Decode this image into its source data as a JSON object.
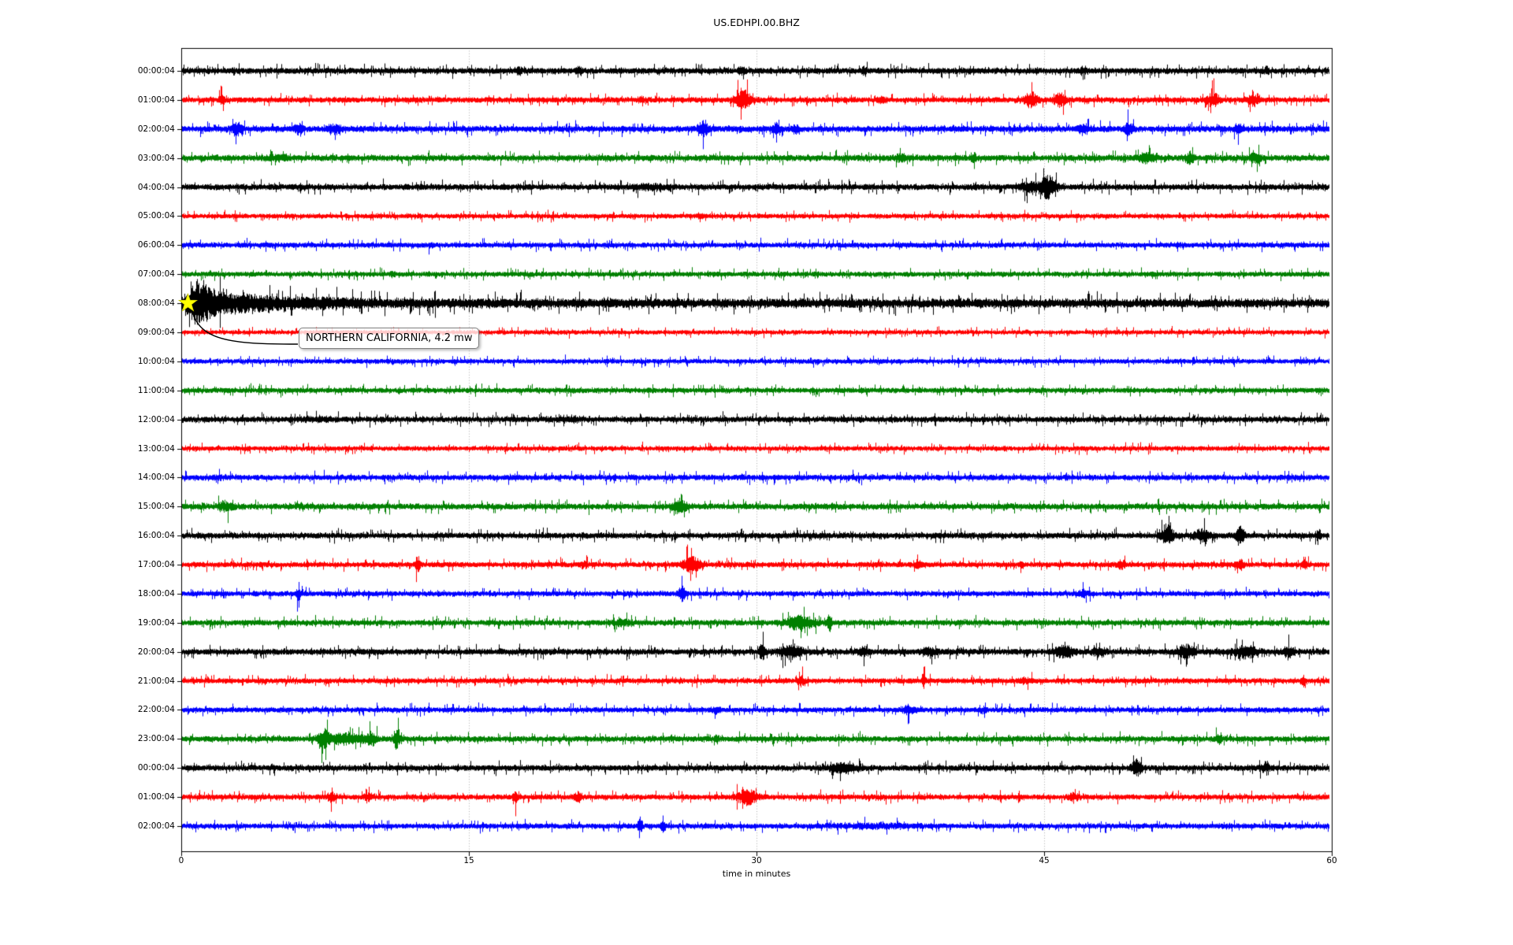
{
  "chart_data": {
    "type": "line",
    "subtype": "helicorder-day-plot",
    "title": "US.EDHPI.00.BHZ",
    "xlabel": "time in minutes",
    "x_range_minutes": [
      0,
      60
    ],
    "x_ticks": [
      0,
      15,
      30,
      45,
      60
    ],
    "grid_vertical_minutes": [
      15,
      30,
      45
    ],
    "grid_style": "dotted",
    "color_cycle": [
      "#000000",
      "#ff0000",
      "#0000ff",
      "#008000"
    ],
    "annotation": {
      "text": "NORTHERN CALIFORNIA, 4.2 mw",
      "event_row_label": "08:00:04",
      "event_row_index": 8,
      "event_minute": 0.35,
      "marker": "star-icon",
      "marker_color": "#ffff00",
      "box_fill": "#ffffff",
      "box_border": "#7f7f7f"
    },
    "rows": [
      {
        "label": "00:00:04",
        "color": "#000000",
        "base": 3.9,
        "events": [
          {
            "t": 17.6,
            "a": 1.1,
            "w": 0.12
          },
          {
            "t": 20.7,
            "a": 0.9,
            "w": 0.12
          },
          {
            "t": 29.2,
            "a": 0.7,
            "w": 0.2
          },
          {
            "t": 35.6,
            "a": 1.3,
            "w": 0.1
          },
          {
            "t": 47.0,
            "a": 0.8,
            "w": 0.15
          },
          {
            "t": 56.6,
            "a": 1.1,
            "w": 0.1
          }
        ]
      },
      {
        "label": "01:00:04",
        "color": "#ff0000",
        "base": 3.6,
        "events": [
          {
            "t": 2.1,
            "a": 1.4,
            "w": 0.15
          },
          {
            "t": 24.0,
            "a": 0.6,
            "w": 0.2
          },
          {
            "t": 29.3,
            "a": 2.7,
            "w": 0.4
          },
          {
            "t": 36.5,
            "a": 0.8,
            "w": 0.2
          },
          {
            "t": 44.3,
            "a": 2.4,
            "w": 0.35
          },
          {
            "t": 45.8,
            "a": 2.1,
            "w": 0.3
          },
          {
            "t": 53.8,
            "a": 2.1,
            "w": 0.3
          },
          {
            "t": 55.9,
            "a": 1.9,
            "w": 0.25
          }
        ]
      },
      {
        "label": "02:00:04",
        "color": "#0000ff",
        "base": 4.0,
        "events": [
          {
            "t": 2.9,
            "a": 1.7,
            "w": 0.25
          },
          {
            "t": 6.1,
            "a": 1.5,
            "w": 0.2
          },
          {
            "t": 8.0,
            "a": 1.2,
            "w": 0.3
          },
          {
            "t": 27.2,
            "a": 2.4,
            "w": 0.25
          },
          {
            "t": 31.0,
            "a": 1.5,
            "w": 0.2
          },
          {
            "t": 32.0,
            "a": 1.0,
            "w": 0.2
          },
          {
            "t": 47.1,
            "a": 1.1,
            "w": 0.3
          },
          {
            "t": 49.4,
            "a": 1.5,
            "w": 0.2
          },
          {
            "t": 55.1,
            "a": 1.3,
            "w": 0.2
          }
        ]
      },
      {
        "label": "03:00:04",
        "color": "#008000",
        "base": 4.0,
        "events": [
          {
            "t": 5.0,
            "a": 0.6,
            "w": 0.5
          },
          {
            "t": 37.5,
            "a": 0.8,
            "w": 0.3
          },
          {
            "t": 41.3,
            "a": 1.5,
            "w": 0.12
          },
          {
            "t": 50.3,
            "a": 1.2,
            "w": 0.4
          },
          {
            "t": 52.6,
            "a": 1.7,
            "w": 0.2
          },
          {
            "t": 56.0,
            "a": 1.1,
            "w": 0.3
          }
        ]
      },
      {
        "label": "04:00:04",
        "color": "#000000",
        "base": 3.9,
        "events": [
          {
            "t": 24.5,
            "a": 0.6,
            "w": 0.8
          },
          {
            "t": 44.2,
            "a": 1.4,
            "w": 0.4
          },
          {
            "t": 45.2,
            "a": 3.6,
            "w": 0.4
          }
        ]
      },
      {
        "label": "05:00:04",
        "color": "#ff0000",
        "base": 3.1,
        "events": [
          {
            "t": 27.0,
            "a": 0.6,
            "w": 0.2
          }
        ]
      },
      {
        "label": "06:00:04",
        "color": "#0000ff",
        "base": 3.4,
        "events": [
          {
            "t": 13.0,
            "a": 0.5,
            "w": 0.2
          },
          {
            "t": 52.0,
            "a": 0.5,
            "w": 0.2
          }
        ]
      },
      {
        "label": "07:00:04",
        "color": "#008000",
        "base": 3.3,
        "events": [
          {
            "t": 11.0,
            "a": 0.7,
            "w": 0.12
          }
        ]
      },
      {
        "label": "08:00:04",
        "color": "#000000",
        "base": 3.9,
        "events": [
          {
            "t": 0.85,
            "a": 5.6,
            "w": 0.5
          },
          {
            "t": 1.7,
            "a": 2.6,
            "w": 0.7
          },
          {
            "t": 3.2,
            "a": 1.4,
            "w": 1.3
          },
          {
            "t": 6.0,
            "a": 0.8,
            "w": 2.5
          }
        ],
        "tail": {
          "a": 0.5,
          "tau": 45,
          "floor": 0.32
        }
      },
      {
        "label": "09:00:04",
        "color": "#ff0000",
        "base": 2.9,
        "events": []
      },
      {
        "label": "10:00:04",
        "color": "#0000ff",
        "base": 3.1,
        "events": []
      },
      {
        "label": "11:00:04",
        "color": "#008000",
        "base": 3.4,
        "events": []
      },
      {
        "label": "12:00:04",
        "color": "#000000",
        "base": 3.7,
        "events": [
          {
            "t": 7.0,
            "a": 0.4,
            "w": 1.0
          },
          {
            "t": 20.0,
            "a": 0.3,
            "w": 0.8
          }
        ]
      },
      {
        "label": "13:00:04",
        "color": "#ff0000",
        "base": 3.1,
        "events": []
      },
      {
        "label": "14:00:04",
        "color": "#0000ff",
        "base": 3.6,
        "events": [
          {
            "t": 2.0,
            "a": 0.4,
            "w": 0.3
          }
        ]
      },
      {
        "label": "15:00:04",
        "color": "#008000",
        "base": 3.9,
        "events": [
          {
            "t": 2.3,
            "a": 1.1,
            "w": 0.4
          },
          {
            "t": 26.0,
            "a": 2.1,
            "w": 0.35
          }
        ]
      },
      {
        "label": "16:00:04",
        "color": "#000000",
        "base": 3.8,
        "events": [
          {
            "t": 51.4,
            "a": 3.1,
            "w": 0.3
          },
          {
            "t": 53.2,
            "a": 1.7,
            "w": 0.4
          },
          {
            "t": 55.2,
            "a": 3.4,
            "w": 0.2
          },
          {
            "t": 59.3,
            "a": 1.5,
            "w": 0.12
          }
        ]
      },
      {
        "label": "17:00:04",
        "color": "#ff0000",
        "base": 3.5,
        "events": [
          {
            "t": 12.3,
            "a": 2.5,
            "w": 0.12
          },
          {
            "t": 21.0,
            "a": 0.8,
            "w": 0.2
          },
          {
            "t": 26.6,
            "a": 2.7,
            "w": 0.45
          },
          {
            "t": 38.4,
            "a": 1.3,
            "w": 0.15
          },
          {
            "t": 43.8,
            "a": 1.7,
            "w": 0.1
          },
          {
            "t": 49.0,
            "a": 1.2,
            "w": 0.2
          },
          {
            "t": 55.2,
            "a": 1.5,
            "w": 0.2
          },
          {
            "t": 58.6,
            "a": 1.2,
            "w": 0.12
          }
        ]
      },
      {
        "label": "18:00:04",
        "color": "#0000ff",
        "base": 3.4,
        "events": [
          {
            "t": 6.1,
            "a": 2.1,
            "w": 0.12
          },
          {
            "t": 26.1,
            "a": 2.3,
            "w": 0.18
          },
          {
            "t": 47.0,
            "a": 1.1,
            "w": 0.25
          }
        ]
      },
      {
        "label": "19:00:04",
        "color": "#008000",
        "base": 3.7,
        "events": [
          {
            "t": 23.0,
            "a": 0.8,
            "w": 0.4
          },
          {
            "t": 32.3,
            "a": 2.1,
            "w": 0.7
          },
          {
            "t": 33.8,
            "a": 2.5,
            "w": 0.12
          }
        ]
      },
      {
        "label": "20:00:04",
        "color": "#000000",
        "base": 3.9,
        "events": [
          {
            "t": 30.3,
            "a": 2.9,
            "w": 0.18
          },
          {
            "t": 31.8,
            "a": 1.7,
            "w": 0.6
          },
          {
            "t": 35.6,
            "a": 1.1,
            "w": 0.3
          },
          {
            "t": 39.0,
            "a": 1.0,
            "w": 0.4
          },
          {
            "t": 46.0,
            "a": 1.7,
            "w": 0.5
          },
          {
            "t": 47.8,
            "a": 1.1,
            "w": 0.3
          },
          {
            "t": 52.4,
            "a": 1.8,
            "w": 0.4
          },
          {
            "t": 55.5,
            "a": 1.6,
            "w": 0.6
          },
          {
            "t": 57.7,
            "a": 1.3,
            "w": 0.3
          }
        ]
      },
      {
        "label": "21:00:04",
        "color": "#ff0000",
        "base": 3.4,
        "events": [
          {
            "t": 32.3,
            "a": 1.7,
            "w": 0.18
          },
          {
            "t": 38.7,
            "a": 2.3,
            "w": 0.1
          },
          {
            "t": 44.0,
            "a": 0.8,
            "w": 0.3
          },
          {
            "t": 58.5,
            "a": 1.5,
            "w": 0.1
          }
        ]
      },
      {
        "label": "22:00:04",
        "color": "#0000ff",
        "base": 3.4,
        "events": [
          {
            "t": 27.9,
            "a": 0.8,
            "w": 0.2
          },
          {
            "t": 37.9,
            "a": 1.2,
            "w": 0.3
          },
          {
            "t": 41.9,
            "a": 1.5,
            "w": 0.1
          }
        ]
      },
      {
        "label": "23:00:04",
        "color": "#008000",
        "base": 3.7,
        "events": [
          {
            "t": 7.4,
            "a": 2.9,
            "w": 0.3
          },
          {
            "t": 8.6,
            "a": 1.7,
            "w": 0.8
          },
          {
            "t": 9.9,
            "a": 1.9,
            "w": 0.3
          },
          {
            "t": 11.2,
            "a": 3.5,
            "w": 0.15
          },
          {
            "t": 27.9,
            "a": 1.1,
            "w": 0.12
          },
          {
            "t": 54.1,
            "a": 1.3,
            "w": 0.15
          }
        ]
      },
      {
        "label": "00:00:04",
        "color": "#000000",
        "base": 3.8,
        "events": [
          {
            "t": 34.5,
            "a": 1.1,
            "w": 0.8
          },
          {
            "t": 49.8,
            "a": 2.5,
            "w": 0.25
          },
          {
            "t": 56.5,
            "a": 1.0,
            "w": 0.3
          }
        ]
      },
      {
        "label": "01:00:04",
        "color": "#ff0000",
        "base": 3.5,
        "events": [
          {
            "t": 7.8,
            "a": 1.3,
            "w": 0.2
          },
          {
            "t": 9.8,
            "a": 1.1,
            "w": 0.2
          },
          {
            "t": 17.4,
            "a": 1.7,
            "w": 0.12
          },
          {
            "t": 20.7,
            "a": 1.4,
            "w": 0.2
          },
          {
            "t": 29.5,
            "a": 2.5,
            "w": 0.5
          },
          {
            "t": 46.5,
            "a": 0.9,
            "w": 0.3
          }
        ]
      },
      {
        "label": "02:00:04",
        "color": "#0000ff",
        "base": 3.4,
        "events": [
          {
            "t": 23.9,
            "a": 2.7,
            "w": 0.12
          },
          {
            "t": 25.1,
            "a": 1.7,
            "w": 0.12
          },
          {
            "t": 36.0,
            "a": 0.5,
            "w": 2.0
          }
        ]
      }
    ]
  }
}
